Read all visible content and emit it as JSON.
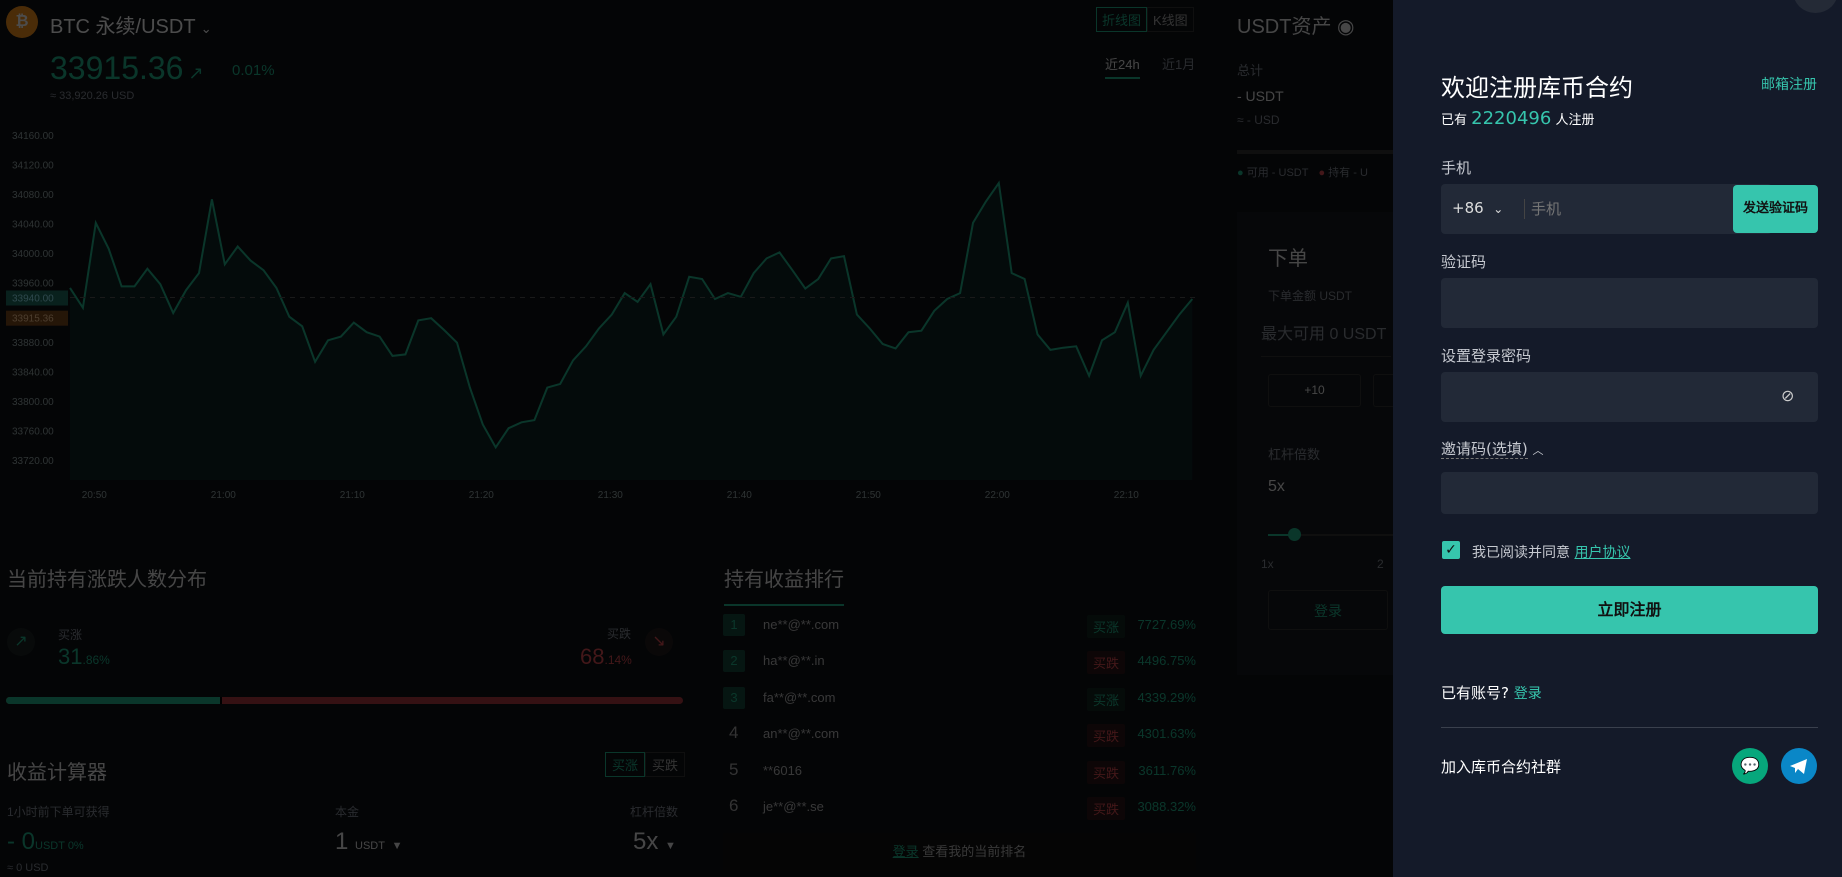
{
  "header": {
    "pair": "BTC 永续/USDT",
    "price": "33915.36",
    "change": "0.01%",
    "usd": "≈ 33,920.26 USD",
    "chart_tabs": [
      "折线图",
      "K线图"
    ],
    "ranges": [
      "近24h",
      "近1月"
    ]
  },
  "assets": {
    "title": "USDT资产",
    "total_label": "总计",
    "total_value": "- USDT",
    "total_usd": "≈ - USD",
    "available": "可用 - USDT",
    "holding": "持有 - U"
  },
  "order": {
    "title": "下单",
    "amount_label": "下单金额 USDT",
    "max_available": "最大可用 0 USDT",
    "quick_add": "+10",
    "leverage_label": "杠杆倍数",
    "leverage_value": "5x",
    "slider_min": "1x",
    "slider_next": "2",
    "login": "登录",
    "leverage_level": 5
  },
  "distribution": {
    "title": "当前持有涨跌人数分布",
    "buy_up": "买涨",
    "buy_up_int": "31",
    "buy_up_dec": ".86%",
    "buy_down": "买跌",
    "buy_down_int": "68",
    "buy_down_dec": ".14%",
    "up_percent": 31.86
  },
  "calculator": {
    "title": "收益计算器",
    "toggle": [
      "买涨",
      "买跌"
    ],
    "profit_label": "1小时前下单可获得",
    "profit_value": "- 0",
    "profit_unit": "USDT 0%",
    "profit_usd": "≈ 0 USD",
    "principal_label": "本金",
    "principal_value": "1",
    "principal_unit": "USDT",
    "leverage_label": "杠杆倍数",
    "leverage_value": "5x"
  },
  "ranking": {
    "title": "持有收益排行",
    "rows": [
      {
        "rank": "1",
        "user": "ne**@**.com",
        "side": "买涨",
        "pct": "7727.69%"
      },
      {
        "rank": "2",
        "user": "ha**@**.in",
        "side": "买跌",
        "pct": "4496.75%"
      },
      {
        "rank": "3",
        "user": "fa**@**.com",
        "side": "买涨",
        "pct": "4339.29%"
      },
      {
        "rank": "4",
        "user": "an**@**.com",
        "side": "买跌",
        "pct": "4301.63%"
      },
      {
        "rank": "5",
        "user": "**6016",
        "side": "买跌",
        "pct": "3611.76%"
      },
      {
        "rank": "6",
        "user": "je**@**.se",
        "side": "买跌",
        "pct": "3088.32%"
      }
    ],
    "login_link": "登录",
    "login_text": " 查看我的当前排名"
  },
  "register": {
    "title": "欢迎注册库币合约",
    "email_link": "邮箱注册",
    "count_prefix": "已有",
    "count": "2220496",
    "count_suffix": "人注册",
    "phone_label": "手机",
    "country_code": "+86",
    "phone_placeholder": "手机",
    "send_code": "发送验证码",
    "code_label": "验证码",
    "password_label": "设置登录密码",
    "invite_label": "邀请码(选填)",
    "agree_text": "我已阅读并同意",
    "agreement_link": "用户协议",
    "agreed": true,
    "submit": "立即注册",
    "have_account": "已有账号?",
    "login": "登录",
    "community": "加入库币合约社群"
  },
  "colors": {
    "green": "#21b48b",
    "red": "#e04e53",
    "accent": "#36c5ad",
    "panel": "#141a29"
  },
  "chart_data": {
    "type": "line",
    "yticks": [
      "34160.00",
      "34120.00",
      "34080.00",
      "34040.00",
      "34000.00",
      "33960.00",
      "33880.00",
      "33840.00",
      "33800.00",
      "33760.00",
      "33720.00"
    ],
    "xticks": [
      "20:50",
      "21:00",
      "21:10",
      "21:20",
      "21:30",
      "21:40",
      "21:50",
      "22:00",
      "22:10"
    ],
    "ylim": [
      33700,
      34180
    ],
    "marker_line": "33940.00",
    "current_price": "33915.36",
    "x_start": "20:48",
    "x_step_minutes": 1,
    "values": [
      33953,
      33926,
      34041,
      34006,
      33955,
      33955,
      33979,
      33958,
      33919,
      33950,
      33973,
      34073,
      33985,
      34009,
      33990,
      33977,
      33953,
      33914,
      33901,
      33853,
      33882,
      33887,
      33906,
      33893,
      33887,
      33861,
      33863,
      33909,
      33912,
      33896,
      33879,
      33818,
      33768,
      33737,
      33763,
      33771,
      33774,
      33818,
      33823,
      33855,
      33874,
      33898,
      33917,
      33946,
      33934,
      33958,
      33890,
      33914,
      33968,
      33965,
      33938,
      33946,
      33941,
      33973,
      33993,
      34001,
      33977,
      33952,
      33965,
      33993,
      33996,
      33917,
      33898,
      33877,
      33871,
      33893,
      33895,
      33922,
      33938,
      33946,
      34041,
      34070,
      34095,
      33973,
      33965,
      33890,
      33869,
      33872,
      33874,
      33834,
      33882,
      33893,
      33933,
      33834,
      33869,
      33893,
      33917,
      33938
    ]
  }
}
